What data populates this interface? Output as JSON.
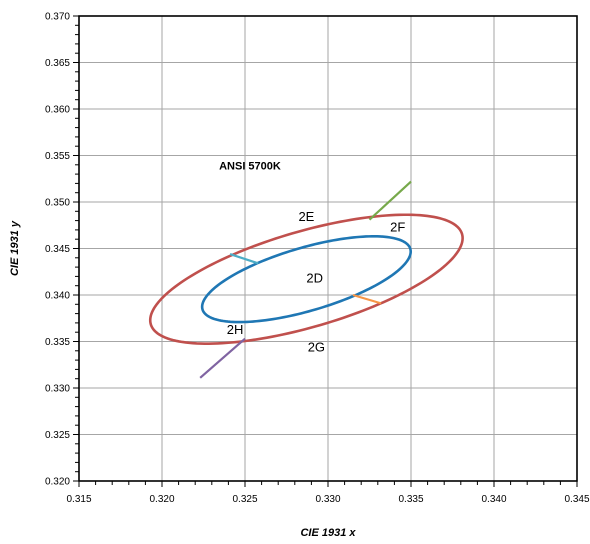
{
  "chart_data": {
    "type": "line",
    "title": "",
    "xlabel": "CIE 1931 x",
    "ylabel": "CIE 1931 y",
    "xlim": [
      0.315,
      0.345
    ],
    "ylim": [
      0.32,
      0.37
    ],
    "grid": true,
    "x_ticks": [
      "0.315",
      "0.320",
      "0.325",
      "0.330",
      "0.335",
      "0.340",
      "0.345"
    ],
    "y_ticks": [
      "0.320",
      "0.325",
      "0.330",
      "0.335",
      "0.340",
      "0.345",
      "0.350",
      "0.355",
      "0.360",
      "0.365",
      "0.370"
    ],
    "ellipses": [
      {
        "name": "outer",
        "color": "#c0504d",
        "center": [
          0.3287,
          0.3417
        ],
        "semi_major": 0.0107,
        "semi_minor": 0.0047,
        "angle_deg": 32
      },
      {
        "name": "inner",
        "color": "#1f77b4",
        "center": [
          0.3287,
          0.3417
        ],
        "semi_major": 0.00715,
        "semi_minor": 0.0031,
        "angle_deg": 32
      }
    ],
    "series": [
      {
        "color": "#77a94b",
        "x": [
          0.3325,
          0.335
        ],
        "y": [
          0.3481,
          0.3522
        ]
      },
      {
        "color": "#4bacc6",
        "x": [
          0.3258,
          0.3241
        ],
        "y": [
          0.3434,
          0.3444
        ]
      },
      {
        "color": "#f79646",
        "x": [
          0.3315,
          0.3332
        ],
        "y": [
          0.34,
          0.3391
        ]
      },
      {
        "color": "#8064a2",
        "x": [
          0.325,
          0.3223
        ],
        "y": [
          0.3353,
          0.3311
        ]
      }
    ],
    "annotations": [
      {
        "text": "ANSI 5700K",
        "x": 0.3253,
        "y": 0.3538,
        "bold": true
      },
      {
        "text": "2E",
        "x": 0.3287,
        "y": 0.3483
      },
      {
        "text": "2F",
        "x": 0.3342,
        "y": 0.3472
      },
      {
        "text": "2D",
        "x": 0.3292,
        "y": 0.3417
      },
      {
        "text": "2H",
        "x": 0.3244,
        "y": 0.3362
      },
      {
        "text": "2G",
        "x": 0.3293,
        "y": 0.3343
      }
    ]
  }
}
